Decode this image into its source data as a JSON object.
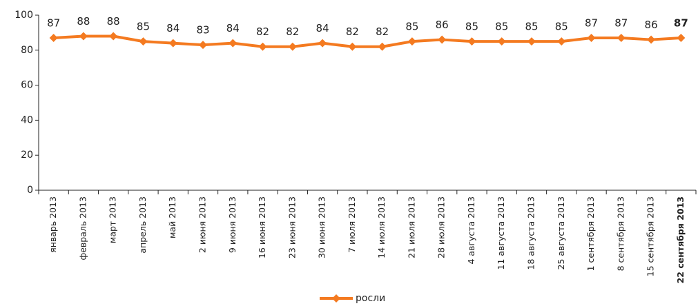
{
  "chart_data": {
    "type": "line",
    "categories": [
      "январь 2013",
      "февраль 2013",
      "март 2013",
      "апрель 2013",
      "май 2013",
      "2 июня 2013",
      "9 июня 2013",
      "16 июня 2013",
      "23 июня 2013",
      "30 июня 2013",
      "7 июля 2013",
      "14 июля 2013",
      "21 июля 2013",
      "28 июля 2013",
      "4 августа 2013",
      "11 августа 2013",
      "18 августа 2013",
      "25 августа 2013",
      "1 сентября 2013",
      "8 сентября 2013",
      "15 сентября 2013",
      "22 сентября 2013"
    ],
    "series": [
      {
        "name": "росли",
        "color": "#f47a20",
        "values": [
          87,
          88,
          88,
          85,
          84,
          83,
          84,
          82,
          82,
          84,
          82,
          82,
          85,
          86,
          85,
          85,
          85,
          85,
          87,
          87,
          86,
          87
        ]
      }
    ],
    "ylim": [
      0,
      100
    ],
    "yticks": [
      0,
      20,
      40,
      60,
      80,
      100
    ],
    "grid": false,
    "legend": "bottom"
  }
}
